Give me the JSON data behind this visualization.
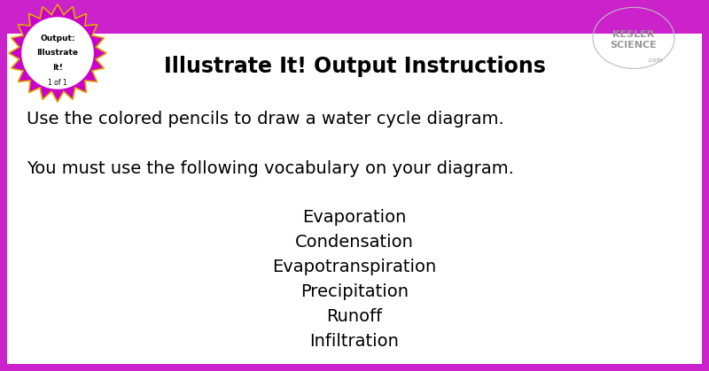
{
  "title": "Illustrate It! Output Instructions",
  "title_fontsize": 17,
  "title_fontweight": "bold",
  "background_color": "#ffffff",
  "border_color": "#cc22cc",
  "line1": "Use the colored pencils to draw a water cycle diagram.",
  "line2": "You must use the following vocabulary on your diagram.",
  "vocab": [
    "Evaporation",
    "Condensation",
    "Evapotranspiration",
    "Precipitation",
    "Runoff",
    "Infiltration"
  ],
  "main_text_fontsize": 14,
  "vocab_fontsize": 14,
  "badge_line1": "Output:",
  "badge_line2": "Illustrate",
  "badge_line3": "It!",
  "badge_sub": "1 of 1",
  "badge_color": "#cc00cc",
  "badge_edge_color": "#ddaa00",
  "logo_color": "#999999",
  "top_bar_color": "#cc22cc"
}
